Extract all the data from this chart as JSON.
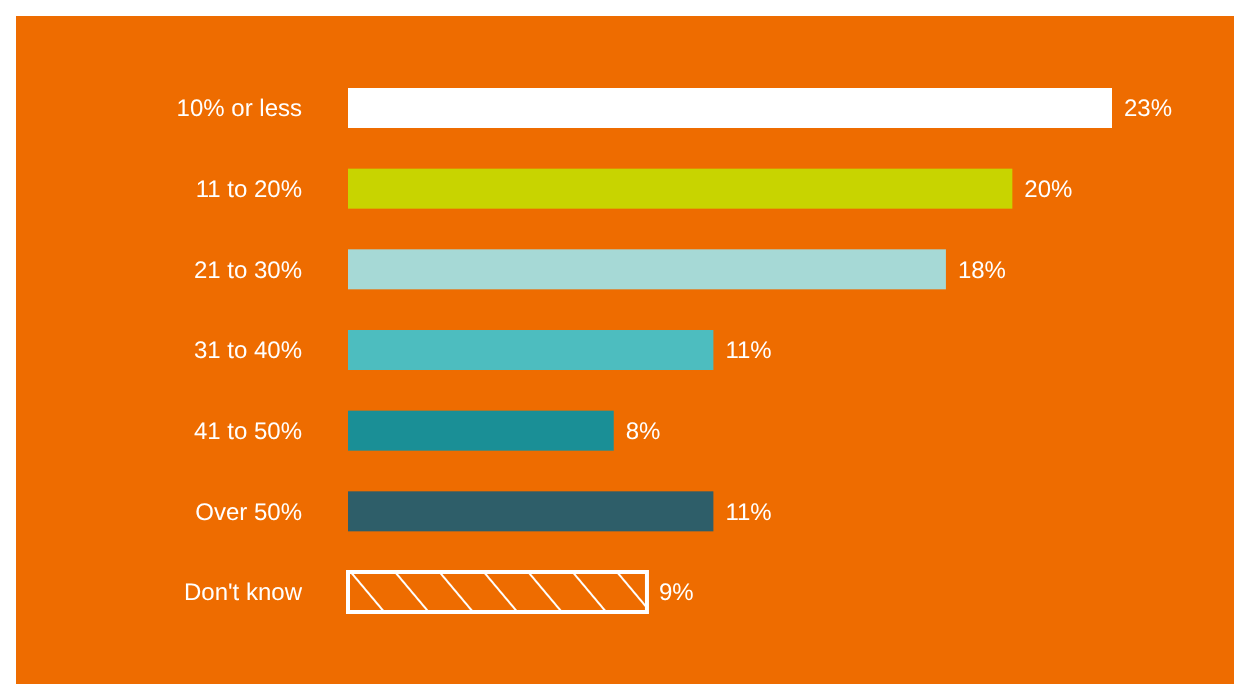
{
  "chart_data": {
    "type": "bar",
    "orientation": "horizontal",
    "categories": [
      "10% or less",
      "11 to 20%",
      "21 to 30%",
      "31 to 40%",
      "41 to 50%",
      "Over 50%",
      "Don't know"
    ],
    "values": [
      23,
      20,
      18,
      11,
      8,
      11,
      9
    ],
    "colors": [
      "#ffffff",
      "#c8d400",
      "#a6d9d6",
      "#4dbdbf",
      "#1a8f96",
      "#2e5e69",
      "#ffffff"
    ],
    "value_labels": [
      "23%",
      "20%",
      "18%",
      "11%",
      "8%",
      "11%",
      "9%"
    ]
  }
}
